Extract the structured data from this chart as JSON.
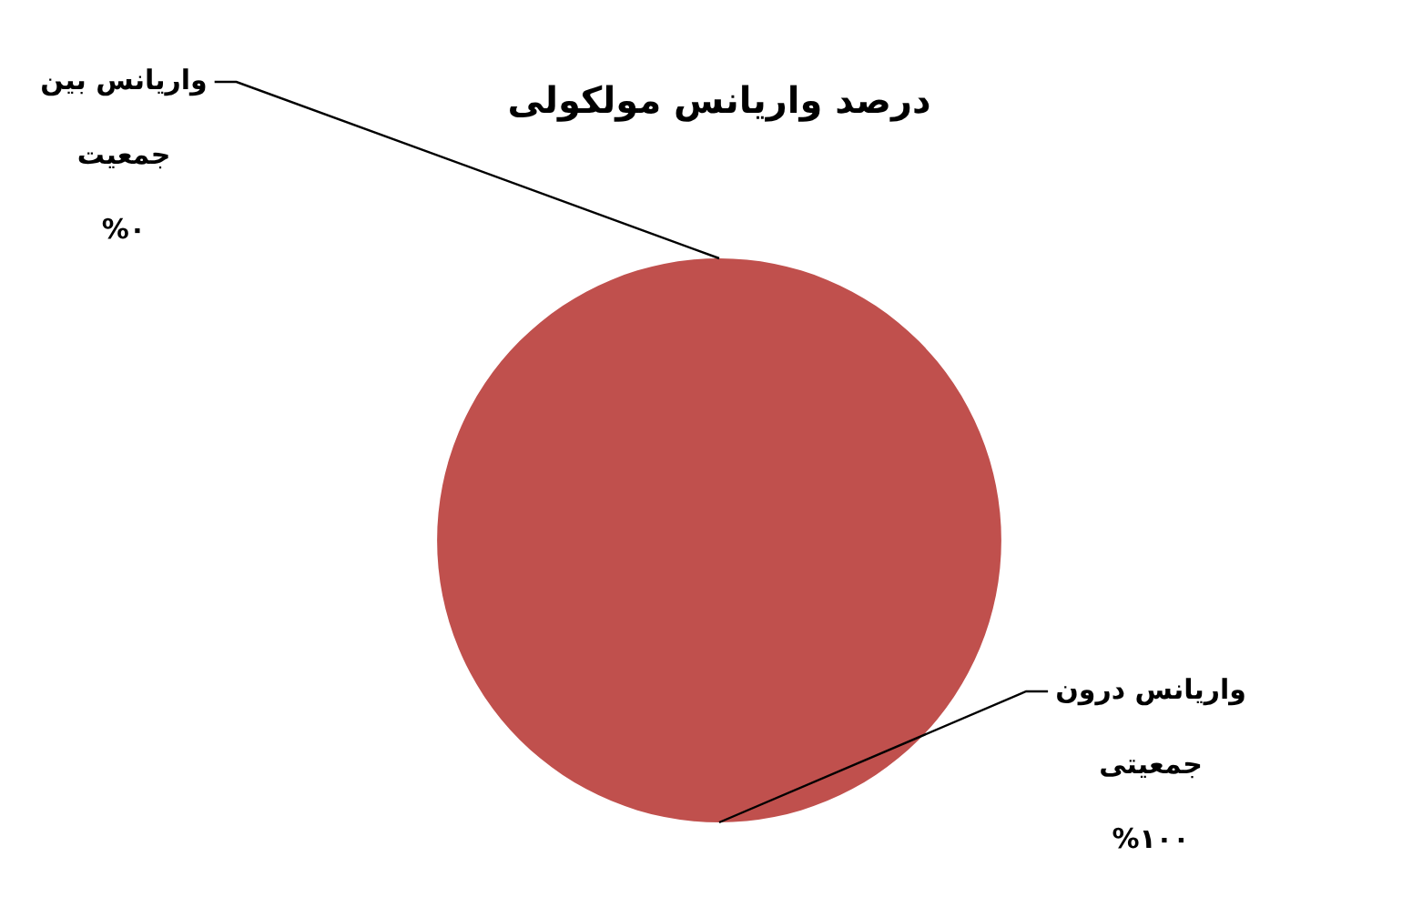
{
  "chart_data": {
    "type": "pie",
    "title": "درصد واریانس مولکولی",
    "categories": [
      "واریانس بین جمعیت",
      "واریانس درون جمعیتی"
    ],
    "values": [
      0,
      100
    ],
    "colors": [
      "#4f81bd",
      "#c0504d"
    ],
    "value_labels": [
      "%۰",
      "%۱۰۰"
    ],
    "legend": false
  }
}
